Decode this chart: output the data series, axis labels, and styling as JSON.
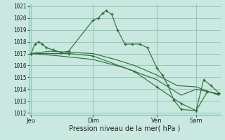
{
  "background_color": "#c8e8e0",
  "grid_color": "#7abda8",
  "line_color": "#2d6a35",
  "ylabel_min": 1012,
  "ylabel_max": 1021,
  "yticks": [
    1012,
    1013,
    1014,
    1015,
    1016,
    1017,
    1018,
    1019,
    1020,
    1021
  ],
  "xlabel": "Pression niveau de la mer( hPa )",
  "day_labels": [
    "Jeu",
    "Dim",
    "Ven",
    "Sam"
  ],
  "day_positions": [
    0.0,
    0.33,
    0.67,
    0.88
  ],
  "xlim": [
    0.0,
    1.0
  ],
  "series1_x": [
    0.0,
    0.02,
    0.04,
    0.06,
    0.08,
    0.12,
    0.16,
    0.2,
    0.33,
    0.36,
    0.38,
    0.4,
    0.43,
    0.46,
    0.5,
    0.54,
    0.58,
    0.62,
    0.67,
    0.7,
    0.73,
    0.76,
    0.8,
    0.88,
    0.92,
    0.96,
    1.0
  ],
  "series1_y": [
    1017.0,
    1017.8,
    1018.0,
    1017.8,
    1017.5,
    1017.3,
    1017.1,
    1017.2,
    1019.8,
    1020.0,
    1020.4,
    1020.6,
    1020.3,
    1019.0,
    1017.8,
    1017.8,
    1017.8,
    1017.5,
    1015.8,
    1015.2,
    1014.3,
    1013.1,
    1012.3,
    1012.2,
    1014.8,
    1014.3,
    1013.7
  ],
  "series2_x": [
    0.0,
    0.1,
    0.2,
    0.33,
    0.45,
    0.55,
    0.67,
    0.78,
    0.88,
    1.0
  ],
  "series2_y": [
    1017.0,
    1017.2,
    1017.1,
    1017.0,
    1016.5,
    1016.0,
    1015.2,
    1014.3,
    1014.2,
    1013.5
  ],
  "series3_x": [
    0.0,
    0.15,
    0.33,
    0.5,
    0.67,
    0.8,
    0.88,
    1.0
  ],
  "series3_y": [
    1017.0,
    1016.8,
    1016.5,
    1015.8,
    1014.8,
    1013.5,
    1014.0,
    1013.6
  ],
  "series4_x": [
    0.0,
    0.2,
    0.33,
    0.55,
    0.67,
    0.8,
    0.88,
    0.94,
    1.0
  ],
  "series4_y": [
    1017.0,
    1017.0,
    1016.8,
    1015.5,
    1014.2,
    1012.8,
    1012.2,
    1013.8,
    1013.6
  ]
}
